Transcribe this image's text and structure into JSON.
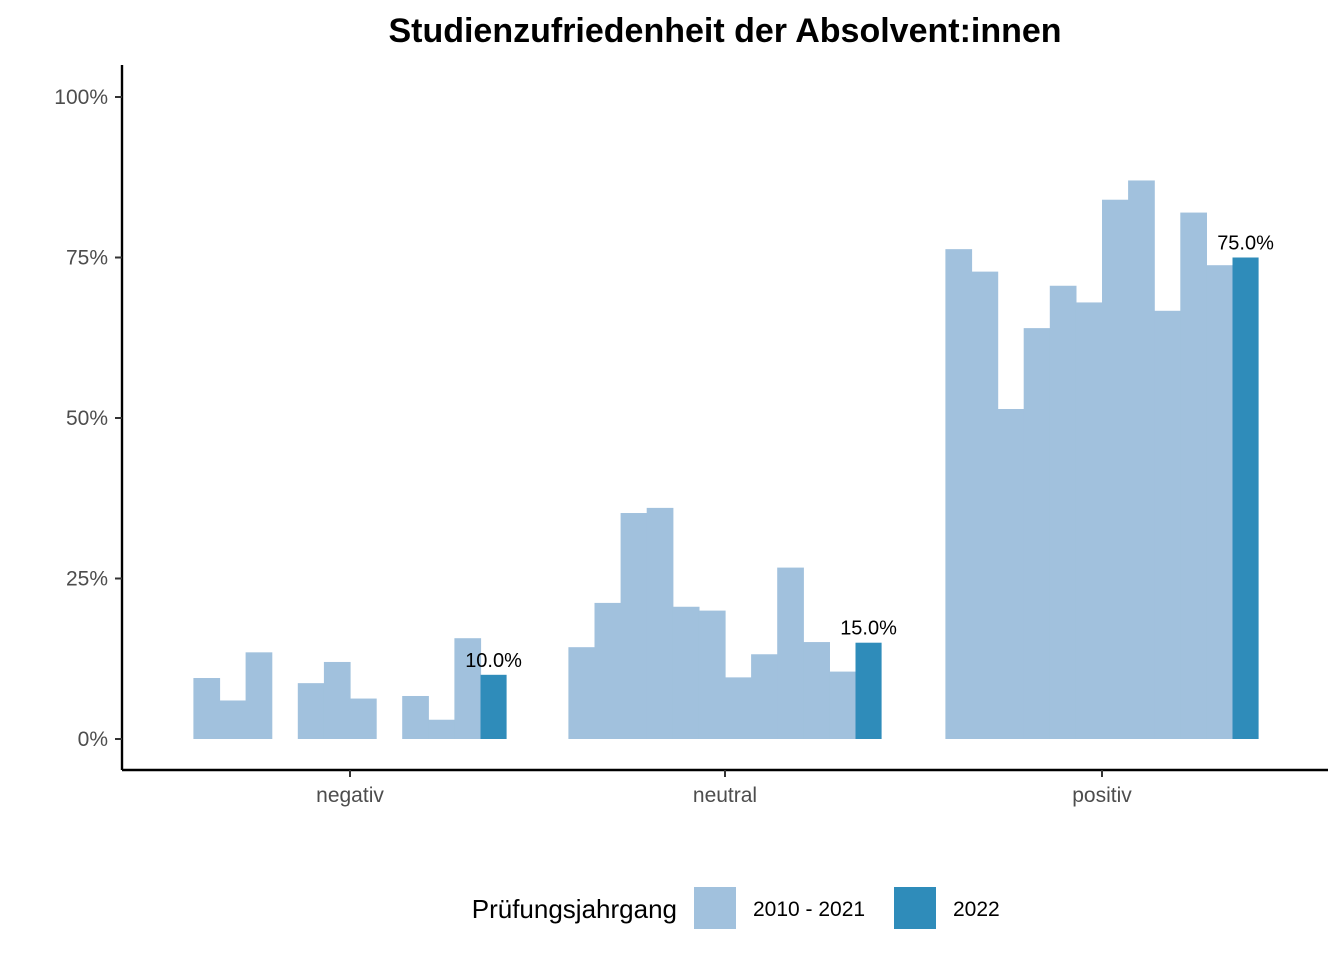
{
  "chart_data": {
    "type": "bar",
    "title": "Studienzufriedenheit der Absolvent:innen",
    "xlabel": "",
    "ylabel": "",
    "ylim": [
      0,
      1.04
    ],
    "y_ticks": [
      0,
      0.25,
      0.5,
      0.75,
      1.0
    ],
    "y_tick_labels": [
      "0%",
      "25%",
      "50%",
      "75%",
      "100%"
    ],
    "categories": [
      "negativ",
      "neutral",
      "positiv"
    ],
    "grid": false,
    "legend": {
      "title": "Prüfungsjahrgang",
      "placement": "bottom",
      "entries": [
        {
          "label": "2010 - 2021",
          "color": "#a1c1dd"
        },
        {
          "label": "2022",
          "color": "#2f8cba"
        }
      ]
    },
    "groups": [
      {
        "category": "negativ",
        "history": [
          0.095,
          0.06,
          0.135,
          null,
          0.087,
          0.12,
          0.063,
          null,
          0.067,
          0.03,
          0.157
        ],
        "current": 0.1,
        "current_label": "10.0%"
      },
      {
        "category": "neutral",
        "history": [
          0.143,
          0.212,
          0.352,
          0.36,
          0.206,
          0.2,
          0.096,
          0.132,
          0.267,
          0.151,
          0.105
        ],
        "current": 0.15,
        "current_label": "15.0%"
      },
      {
        "category": "positiv",
        "history": [
          0.763,
          0.728,
          0.514,
          0.64,
          0.706,
          0.68,
          0.84,
          0.87,
          0.667,
          0.82,
          0.738
        ],
        "current": 0.75,
        "current_label": "75.0%"
      }
    ]
  }
}
